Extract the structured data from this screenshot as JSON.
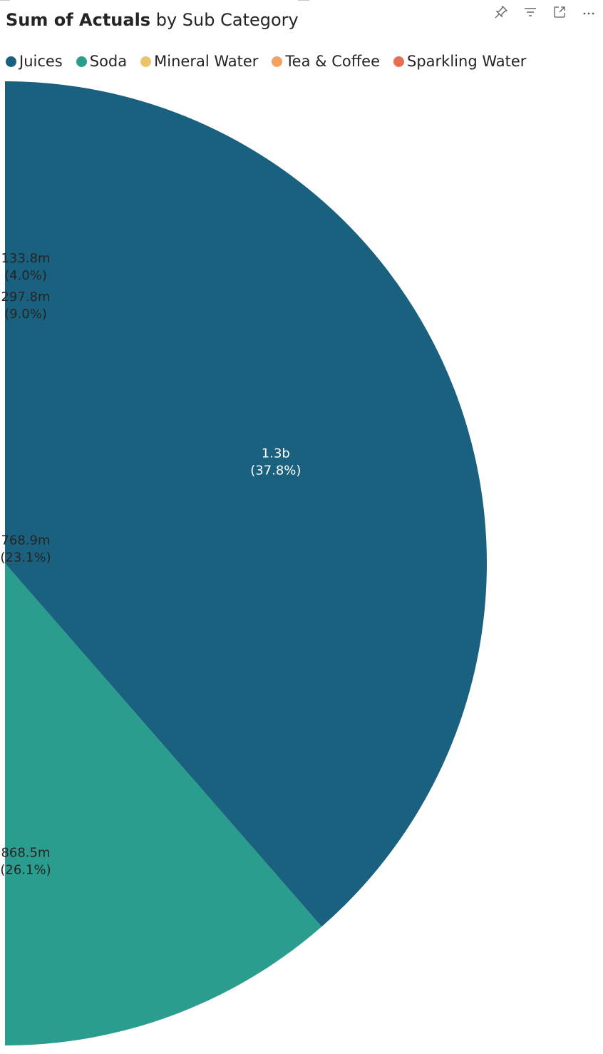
{
  "title": {
    "measure": "Sum of Actuals",
    "rest": "by Sub Category"
  },
  "toolbar": {
    "icons": [
      "pin-icon",
      "filter-icon",
      "focus-mode-icon",
      "more-options-icon"
    ]
  },
  "chart_data": {
    "type": "pie",
    "title": "Sum of Actuals by Sub Category",
    "legend_position": "top-left",
    "categories": [
      "Juices",
      "Soda",
      "Mineral Water",
      "Tea & Coffee",
      "Sparkling Water"
    ],
    "values": [
      1300000000,
      868500000,
      768900000,
      297800000,
      133800000
    ],
    "value_labels": [
      "1.3b",
      "868.5m",
      "768.9m",
      "297.8m",
      "133.8m"
    ],
    "percent_labels": [
      "(37.8%)",
      "(26.1%)",
      "(23.1%)",
      "(9.0%)",
      "(4.0%)"
    ],
    "colors": [
      "#1a6180",
      "#2a9d8f",
      "#e9c46a",
      "#f4a261",
      "#e76f51"
    ],
    "label_colors": [
      "#ffffff",
      "#252423",
      "#252423",
      "#252423",
      "#252423"
    ]
  }
}
